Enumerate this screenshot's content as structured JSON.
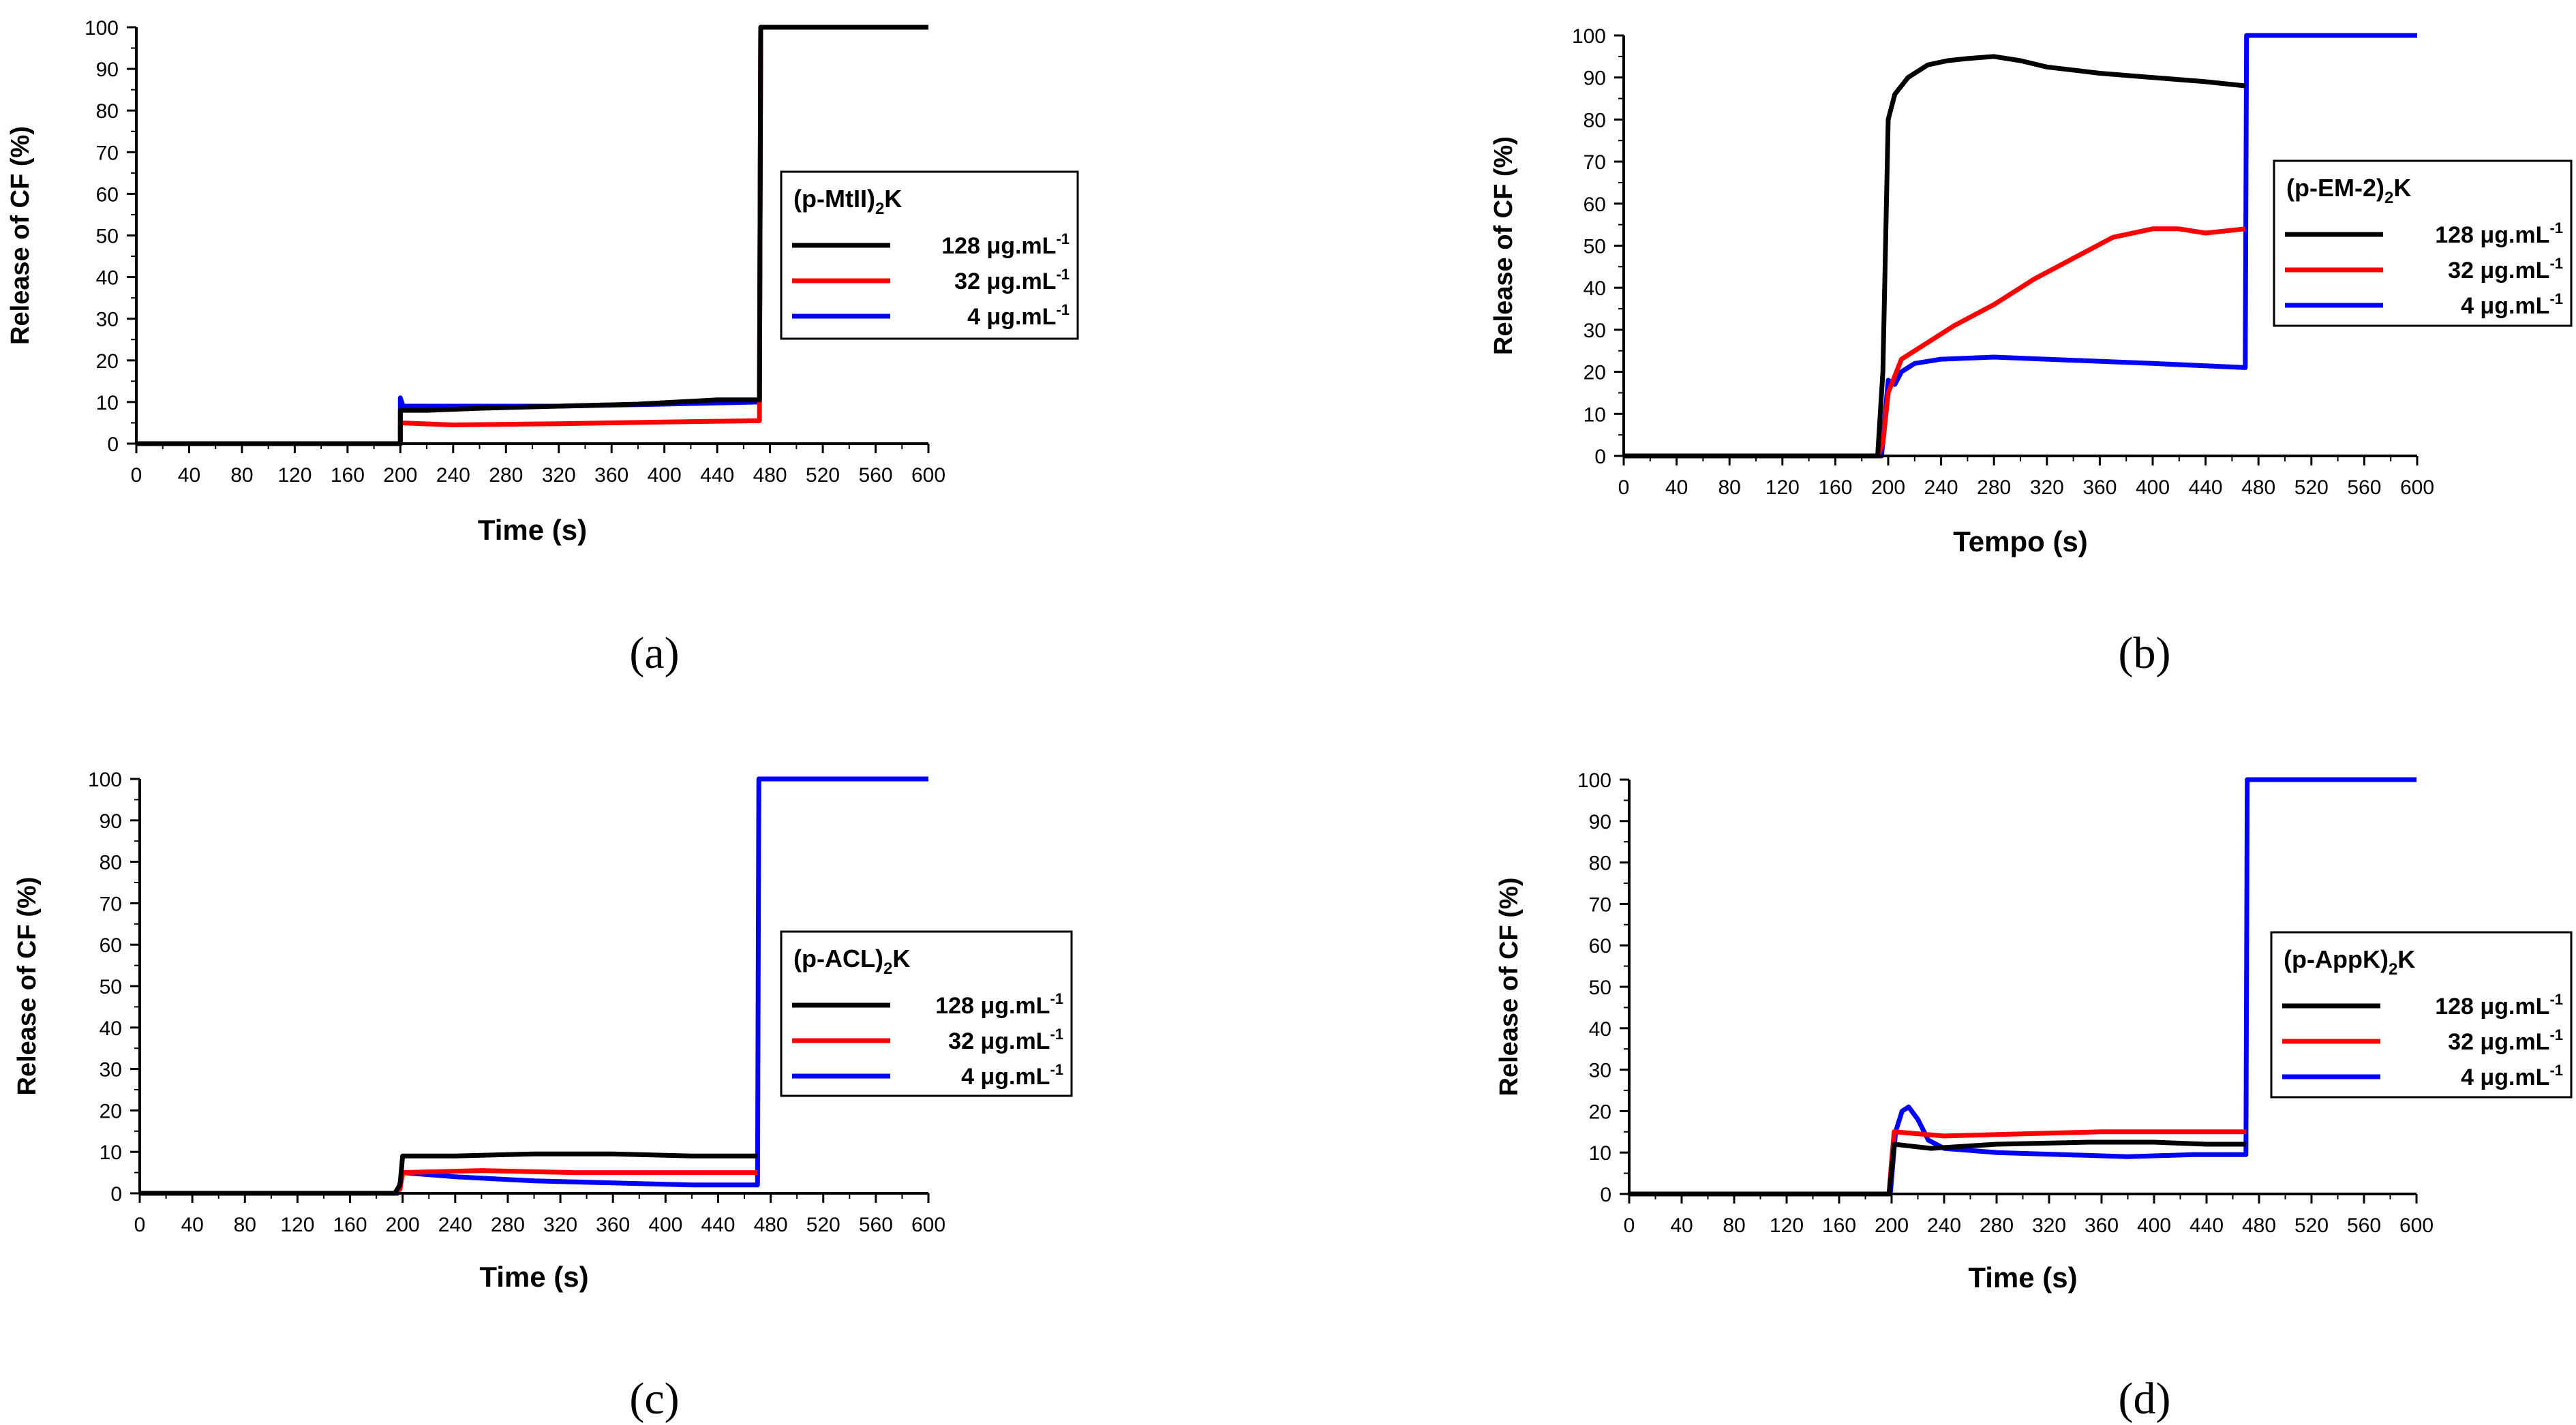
{
  "colors": {
    "s128": "#000000",
    "s32": "#ff0000",
    "s4": "#0000ff"
  },
  "chart_data": [
    {
      "type": "line",
      "panel": "a",
      "caption": "(a)",
      "xlabel": "Time (s)",
      "ylabel": "Release of  CF (%)",
      "xlim": [
        0,
        600
      ],
      "ylim": [
        0,
        100
      ],
      "xticks": [
        "0",
        "40",
        "80",
        "120",
        "160",
        "200",
        "240",
        "280",
        "320",
        "360",
        "400",
        "440",
        "480",
        "520",
        "560",
        "600"
      ],
      "yticks": [
        "0",
        "10",
        "20",
        "30",
        "40",
        "50",
        "60",
        "70",
        "80",
        "90",
        "100"
      ],
      "legend": {
        "title": "(p-MtII)",
        "title_sub": "2",
        "title_suffix": "K",
        "position": "center-right"
      },
      "series": [
        {
          "name": "128 μg.mL",
          "sup": "-1",
          "color": "#000000",
          "x": [
            0,
            199,
            200,
            200,
            220,
            260,
            320,
            380,
            440,
            472,
            473,
            475,
            600
          ],
          "y": [
            0,
            0,
            0,
            8,
            8,
            8.5,
            9,
            9.5,
            10.5,
            10.5,
            100,
            100,
            100
          ]
        },
        {
          "name": "32 μg.mL",
          "sup": "-1",
          "color": "#ff0000",
          "x": [
            0,
            199,
            200,
            200,
            240,
            320,
            400,
            472,
            473,
            475,
            600
          ],
          "y": [
            0,
            0,
            0,
            5,
            4.5,
            4.8,
            5.2,
            5.5,
            100,
            100,
            100
          ]
        },
        {
          "name": "4 μg.mL",
          "sup": "-1",
          "color": "#0000ff",
          "x": [
            0,
            199,
            200,
            200,
            202,
            210,
            260,
            320,
            400,
            472,
            473,
            475,
            600
          ],
          "y": [
            0,
            0,
            0,
            11,
            9,
            9,
            9,
            9,
            9.5,
            10,
            100,
            100,
            100
          ]
        }
      ]
    },
    {
      "type": "line",
      "panel": "b",
      "caption": "(b)",
      "xlabel": "Tempo (s)",
      "ylabel": "Release of CF (%)",
      "xlim": [
        0,
        600
      ],
      "ylim": [
        0,
        100
      ],
      "xticks": [
        "0",
        "40",
        "80",
        "120",
        "160",
        "200",
        "240",
        "280",
        "320",
        "360",
        "400",
        "440",
        "480",
        "520",
        "560",
        "600"
      ],
      "yticks": [
        "0",
        "10",
        "20",
        "30",
        "40",
        "50",
        "60",
        "70",
        "80",
        "90",
        "100"
      ],
      "legend": {
        "title": "(p-EM-2)",
        "title_sub": "2",
        "title_suffix": "K",
        "position": "center-right"
      },
      "series": [
        {
          "name": "128 μg.mL",
          "sup": "-1",
          "color": "#000000",
          "x": [
            0,
            192,
            196,
            200,
            205,
            215,
            230,
            245,
            260,
            280,
            300,
            320,
            360,
            400,
            440,
            470
          ],
          "y": [
            0,
            0,
            20,
            80,
            86,
            90,
            93,
            94,
            94.5,
            95,
            94,
            92.5,
            91,
            90,
            89,
            88
          ]
        },
        {
          "name": "32 μg.mL",
          "sup": "-1",
          "color": "#ff0000",
          "x": [
            0,
            192,
            196,
            200,
            210,
            230,
            250,
            280,
            310,
            340,
            370,
            400,
            420,
            440,
            470
          ],
          "y": [
            0,
            0,
            3,
            15,
            23,
            27,
            31,
            36,
            42,
            47,
            52,
            54,
            54,
            53,
            54
          ]
        },
        {
          "name": "4 μg.mL",
          "sup": "-1",
          "color": "#0000ff",
          "x": [
            0,
            195,
            200,
            205,
            210,
            220,
            240,
            280,
            320,
            400,
            470,
            471,
            600
          ],
          "y": [
            0,
            0,
            18,
            17,
            20,
            22,
            23,
            23.5,
            23,
            22,
            21,
            100,
            100
          ]
        }
      ]
    },
    {
      "type": "line",
      "panel": "c",
      "caption": "(c)",
      "xlabel": "Time (s)",
      "ylabel": "Release of CF (%)",
      "xlim": [
        0,
        600
      ],
      "ylim": [
        0,
        100
      ],
      "xticks": [
        "0",
        "40",
        "80",
        "120",
        "160",
        "200",
        "240",
        "280",
        "320",
        "360",
        "400",
        "440",
        "480",
        "520",
        "560",
        "600"
      ],
      "yticks": [
        "0",
        "10",
        "20",
        "30",
        "40",
        "50",
        "60",
        "70",
        "80",
        "90",
        "100"
      ],
      "legend": {
        "title": "(p-ACL)",
        "title_sub": "2",
        "title_suffix": "K",
        "position": "center-right"
      },
      "series": [
        {
          "name": "128 μg.mL",
          "sup": "-1",
          "color": "#000000",
          "x": [
            0,
            194,
            198,
            200,
            240,
            300,
            360,
            420,
            470
          ],
          "y": [
            0,
            0,
            2,
            9,
            9,
            9.5,
            9.5,
            9,
            9
          ]
        },
        {
          "name": "32 μg.mL",
          "sup": "-1",
          "color": "#ff0000",
          "x": [
            0,
            194,
            198,
            200,
            260,
            330,
            400,
            470
          ],
          "y": [
            0,
            0,
            1,
            5,
            5.5,
            5,
            5,
            5
          ]
        },
        {
          "name": "4 μg.mL",
          "sup": "-1",
          "color": "#0000ff",
          "x": [
            0,
            196,
            200,
            240,
            300,
            360,
            420,
            470,
            471,
            600
          ],
          "y": [
            0,
            0,
            5,
            4,
            3,
            2.5,
            2,
            2,
            100,
            100
          ]
        }
      ]
    },
    {
      "type": "line",
      "panel": "d",
      "caption": "(d)",
      "xlabel": "Time (s)",
      "ylabel": "Release of CF (%)",
      "xlim": [
        0,
        600
      ],
      "ylim": [
        0,
        100
      ],
      "xticks": [
        "0",
        "40",
        "80",
        "120",
        "160",
        "200",
        "240",
        "280",
        "320",
        "360",
        "400",
        "440",
        "480",
        "520",
        "560",
        "600"
      ],
      "yticks": [
        "0",
        "10",
        "20",
        "30",
        "40",
        "50",
        "60",
        "70",
        "80",
        "90",
        "100"
      ],
      "legend": {
        "title": "(p-AppK)",
        "title_sub": "2",
        "title_suffix": "K",
        "position": "center-right"
      },
      "series": [
        {
          "name": "128 μg.mL",
          "sup": "-1",
          "color": "#000000",
          "x": [
            0,
            198,
            200,
            202,
            230,
            280,
            350,
            400,
            440,
            470
          ],
          "y": [
            0,
            0,
            6,
            12,
            11,
            12,
            12.5,
            12.5,
            12,
            12
          ]
        },
        {
          "name": "32 μg.mL",
          "sup": "-1",
          "color": "#ff0000",
          "x": [
            0,
            198,
            200,
            202,
            240,
            300,
            360,
            420,
            470
          ],
          "y": [
            0,
            0,
            8,
            15,
            14,
            14.5,
            15,
            15,
            15
          ]
        },
        {
          "name": "4 μg.mL",
          "sup": "-1",
          "color": "#0000ff",
          "x": [
            0,
            199,
            203,
            208,
            213,
            220,
            228,
            240,
            280,
            330,
            380,
            430,
            470,
            471,
            600
          ],
          "y": [
            0,
            0,
            15,
            20,
            21,
            18,
            13,
            11,
            10,
            9.5,
            9,
            9.5,
            9.5,
            100,
            100
          ]
        }
      ]
    }
  ]
}
